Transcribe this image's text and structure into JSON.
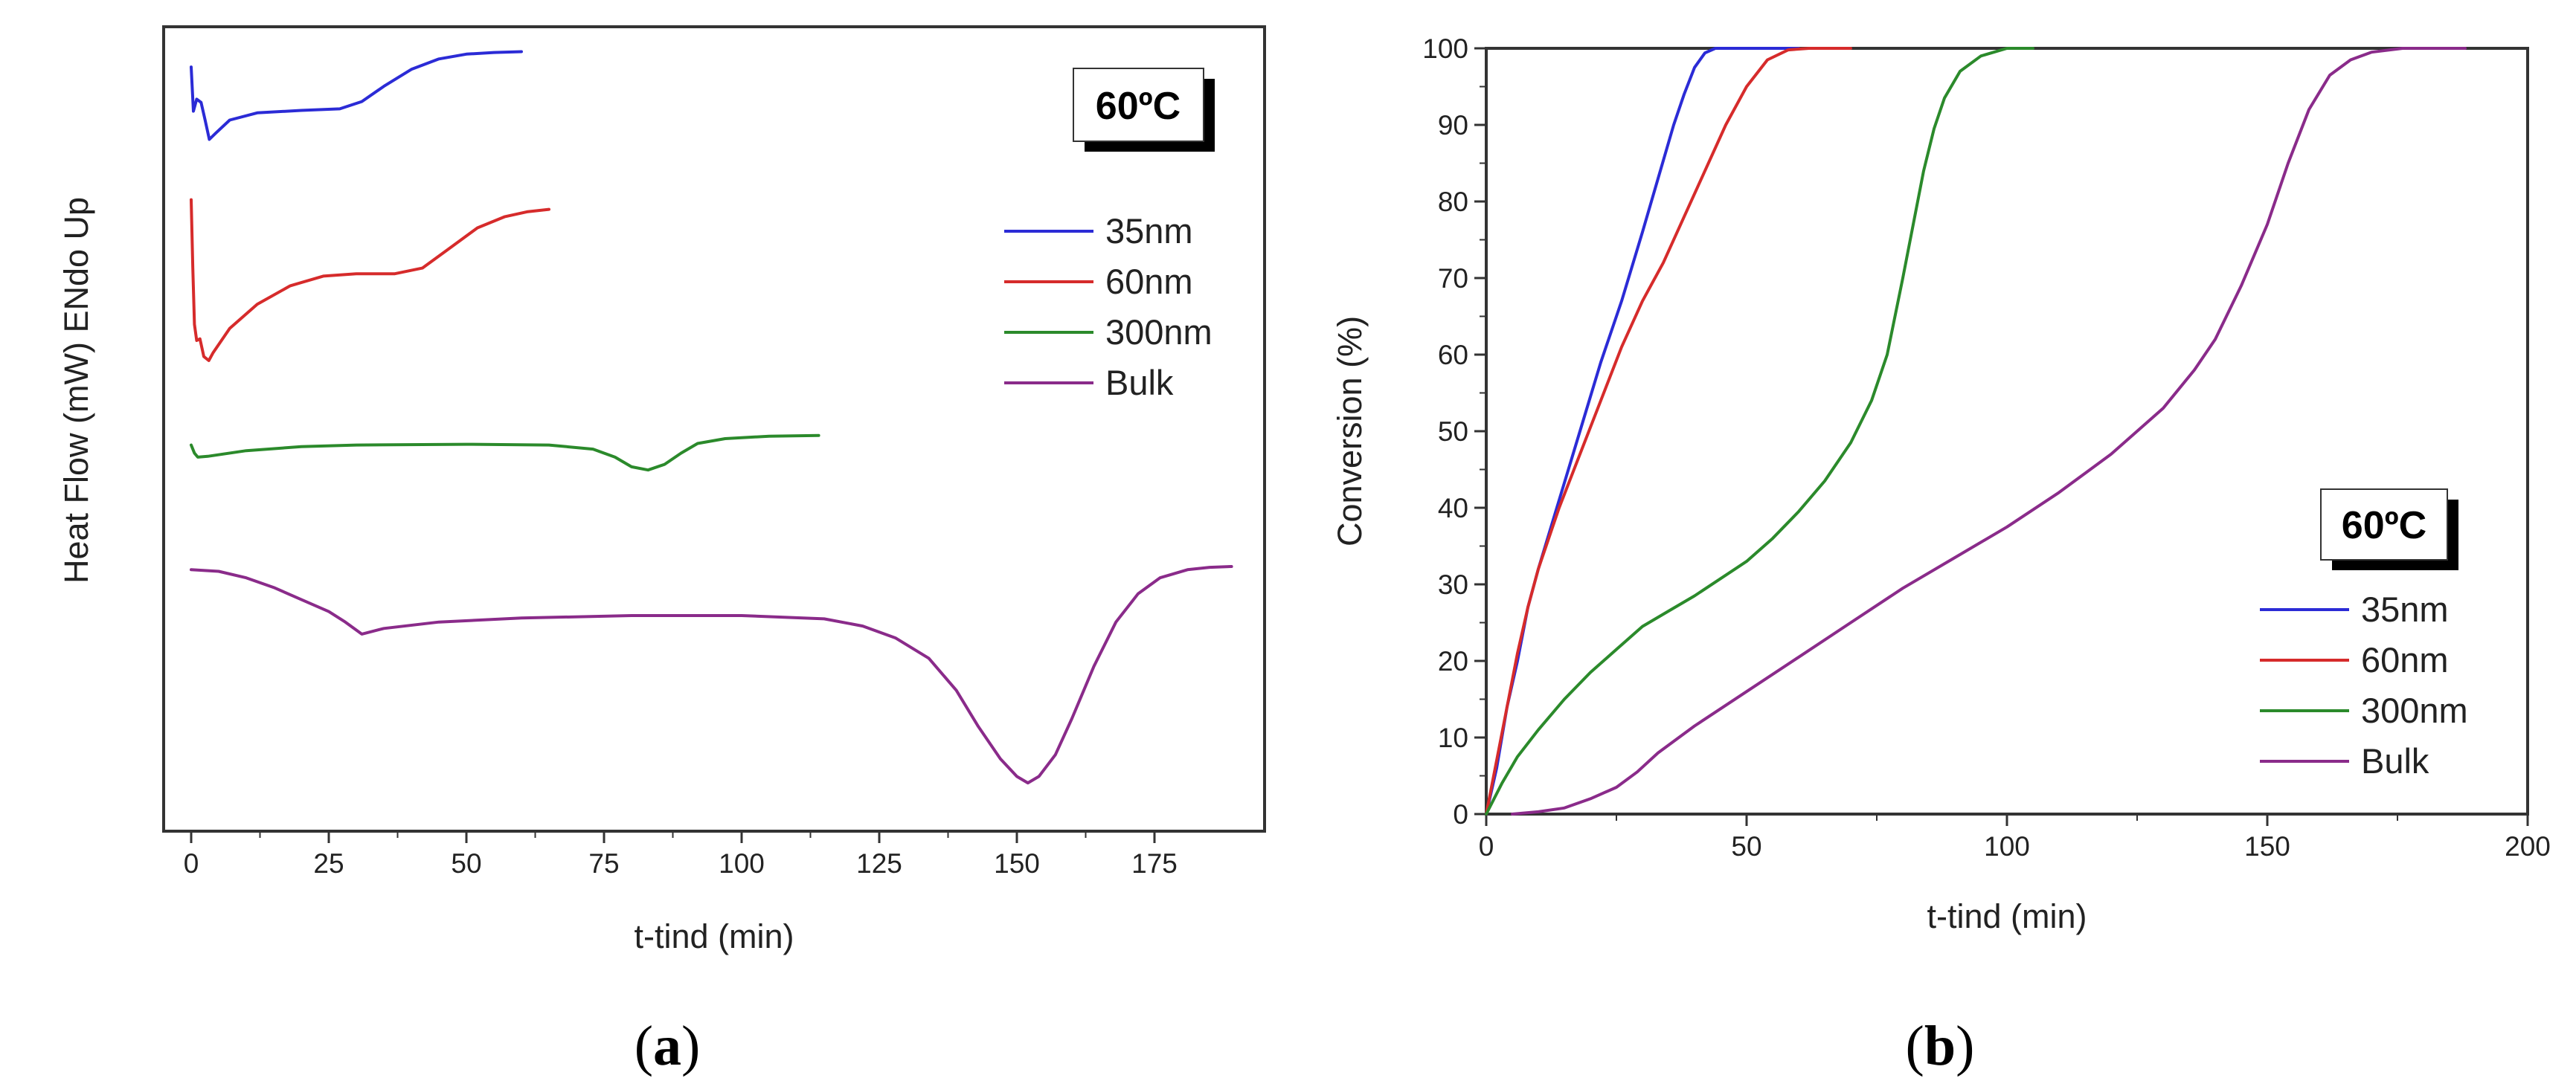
{
  "chart_data": [
    {
      "id": "a",
      "type": "line",
      "panel_label": "a",
      "xlabel": "t-tind (min)",
      "ylabel": "Heat Flow (mW) ENdo Up",
      "xlim": [
        -5,
        195
      ],
      "ylim": [
        0,
        100
      ],
      "x_ticks": [
        0,
        25,
        50,
        75,
        100,
        125,
        150,
        175
      ],
      "y_ticks_shown": false,
      "annotation": "60ºC",
      "legend_position": "right",
      "series": [
        {
          "name": "35nm",
          "color": "#2b2bd6",
          "points": [
            [
              0,
              95
            ],
            [
              0.4,
              89.5
            ],
            [
              1,
              91
            ],
            [
              1.8,
              90.6
            ],
            [
              2.5,
              88.5
            ],
            [
              3.3,
              86
            ],
            [
              4.5,
              86.8
            ],
            [
              7,
              88.4
            ],
            [
              12,
              89.3
            ],
            [
              20,
              89.6
            ],
            [
              27,
              89.8
            ],
            [
              31,
              90.7
            ],
            [
              35,
              92.6
            ],
            [
              40,
              94.7
            ],
            [
              45,
              96
            ],
            [
              50,
              96.6
            ],
            [
              55,
              96.8
            ],
            [
              60,
              96.9
            ]
          ]
        },
        {
          "name": "60nm",
          "color": "#d62b2b",
          "points": [
            [
              0,
              78.5
            ],
            [
              0.3,
              70
            ],
            [
              0.6,
              63
            ],
            [
              1,
              61
            ],
            [
              1.6,
              61.2
            ],
            [
              2.3,
              59
            ],
            [
              3.2,
              58.5
            ],
            [
              4,
              59.5
            ],
            [
              7,
              62.5
            ],
            [
              12,
              65.5
            ],
            [
              18,
              67.8
            ],
            [
              24,
              69
            ],
            [
              30,
              69.3
            ],
            [
              37,
              69.3
            ],
            [
              42,
              70
            ],
            [
              47,
              72.5
            ],
            [
              52,
              75
            ],
            [
              57,
              76.4
            ],
            [
              61,
              77
            ],
            [
              65,
              77.3
            ]
          ]
        },
        {
          "name": "300nm",
          "color": "#2b8a2b",
          "points": [
            [
              0,
              48
            ],
            [
              0.6,
              47
            ],
            [
              1.2,
              46.5
            ],
            [
              3,
              46.6
            ],
            [
              10,
              47.3
            ],
            [
              20,
              47.8
            ],
            [
              30,
              48
            ],
            [
              50,
              48.1
            ],
            [
              65,
              48
            ],
            [
              73,
              47.5
            ],
            [
              77,
              46.5
            ],
            [
              80,
              45.3
            ],
            [
              83,
              44.9
            ],
            [
              86,
              45.6
            ],
            [
              89,
              47
            ],
            [
              92,
              48.2
            ],
            [
              97,
              48.8
            ],
            [
              105,
              49.1
            ],
            [
              114,
              49.2
            ]
          ]
        },
        {
          "name": "Bulk",
          "color": "#8a2b8a",
          "points": [
            [
              0,
              32.5
            ],
            [
              5,
              32.3
            ],
            [
              10,
              31.5
            ],
            [
              15,
              30.3
            ],
            [
              20,
              28.8
            ],
            [
              25,
              27.3
            ],
            [
              28,
              26
            ],
            [
              31,
              24.5
            ],
            [
              35,
              25.2
            ],
            [
              45,
              26
            ],
            [
              60,
              26.5
            ],
            [
              80,
              26.8
            ],
            [
              100,
              26.8
            ],
            [
              115,
              26.4
            ],
            [
              122,
              25.5
            ],
            [
              128,
              24
            ],
            [
              134,
              21.5
            ],
            [
              139,
              17.5
            ],
            [
              143,
              13
            ],
            [
              147,
              9
            ],
            [
              150,
              6.8
            ],
            [
              152,
              6
            ],
            [
              154,
              6.8
            ],
            [
              157,
              9.5
            ],
            [
              160,
              14
            ],
            [
              164,
              20.5
            ],
            [
              168,
              26
            ],
            [
              172,
              29.5
            ],
            [
              176,
              31.5
            ],
            [
              181,
              32.5
            ],
            [
              185,
              32.8
            ],
            [
              189,
              32.9
            ]
          ]
        }
      ]
    },
    {
      "id": "b",
      "type": "line",
      "panel_label": "b",
      "xlabel": "t-tind (min)",
      "ylabel": "Conversion (%)",
      "xlim": [
        0,
        200
      ],
      "ylim": [
        0,
        100
      ],
      "x_ticks": [
        0,
        50,
        100,
        150,
        200
      ],
      "y_ticks": [
        0,
        10,
        20,
        30,
        40,
        50,
        60,
        70,
        80,
        90,
        100
      ],
      "annotation": "60ºC",
      "legend_position": "bottom-right",
      "series": [
        {
          "name": "35nm",
          "color": "#2b2bd6",
          "points": [
            [
              0,
              0
            ],
            [
              2,
              6
            ],
            [
              4,
              14
            ],
            [
              6,
              20
            ],
            [
              8,
              27
            ],
            [
              10,
              32
            ],
            [
              14,
              41
            ],
            [
              18,
              50
            ],
            [
              22,
              59
            ],
            [
              26,
              67
            ],
            [
              30,
              76
            ],
            [
              33,
              83
            ],
            [
              36,
              90
            ],
            [
              38,
              94
            ],
            [
              40,
              97.5
            ],
            [
              42,
              99.4
            ],
            [
              44,
              100
            ],
            [
              60,
              100
            ]
          ]
        },
        {
          "name": "60nm",
          "color": "#d62b2b",
          "points": [
            [
              0,
              0
            ],
            [
              2,
              7
            ],
            [
              4,
              14
            ],
            [
              6,
              21
            ],
            [
              8,
              27
            ],
            [
              10,
              32
            ],
            [
              14,
              40
            ],
            [
              18,
              47
            ],
            [
              22,
              54
            ],
            [
              26,
              61
            ],
            [
              30,
              67
            ],
            [
              34,
              72
            ],
            [
              38,
              78
            ],
            [
              42,
              84
            ],
            [
              46,
              90
            ],
            [
              50,
              95
            ],
            [
              54,
              98.5
            ],
            [
              58,
              99.8
            ],
            [
              62,
              100
            ],
            [
              70,
              100
            ]
          ]
        },
        {
          "name": "300nm",
          "color": "#2b8a2b",
          "points": [
            [
              0,
              0
            ],
            [
              3,
              4
            ],
            [
              6,
              7.5
            ],
            [
              10,
              11
            ],
            [
              15,
              15
            ],
            [
              20,
              18.5
            ],
            [
              25,
              21.5
            ],
            [
              30,
              24.5
            ],
            [
              35,
              26.5
            ],
            [
              40,
              28.5
            ],
            [
              50,
              33
            ],
            [
              55,
              36
            ],
            [
              60,
              39.5
            ],
            [
              65,
              43.5
            ],
            [
              70,
              48.5
            ],
            [
              74,
              54
            ],
            [
              77,
              60
            ],
            [
              80,
              70
            ],
            [
              82,
              77
            ],
            [
              84,
              84
            ],
            [
              86,
              89.5
            ],
            [
              88,
              93.5
            ],
            [
              91,
              97
            ],
            [
              95,
              99
            ],
            [
              100,
              100
            ],
            [
              105,
              100
            ]
          ]
        },
        {
          "name": "Bulk",
          "color": "#8a2b8a",
          "points": [
            [
              5,
              0
            ],
            [
              10,
              0.3
            ],
            [
              15,
              0.8
            ],
            [
              20,
              2
            ],
            [
              25,
              3.5
            ],
            [
              29,
              5.5
            ],
            [
              33,
              8
            ],
            [
              40,
              11.5
            ],
            [
              50,
              16
            ],
            [
              60,
              20.5
            ],
            [
              70,
              25
            ],
            [
              80,
              29.5
            ],
            [
              90,
              33.5
            ],
            [
              100,
              37.5
            ],
            [
              110,
              42
            ],
            [
              120,
              47
            ],
            [
              130,
              53
            ],
            [
              136,
              58
            ],
            [
              140,
              62
            ],
            [
              145,
              69
            ],
            [
              150,
              77
            ],
            [
              154,
              85
            ],
            [
              158,
              92
            ],
            [
              162,
              96.5
            ],
            [
              166,
              98.5
            ],
            [
              170,
              99.5
            ],
            [
              176,
              100
            ],
            [
              188,
              100
            ]
          ]
        }
      ]
    }
  ]
}
